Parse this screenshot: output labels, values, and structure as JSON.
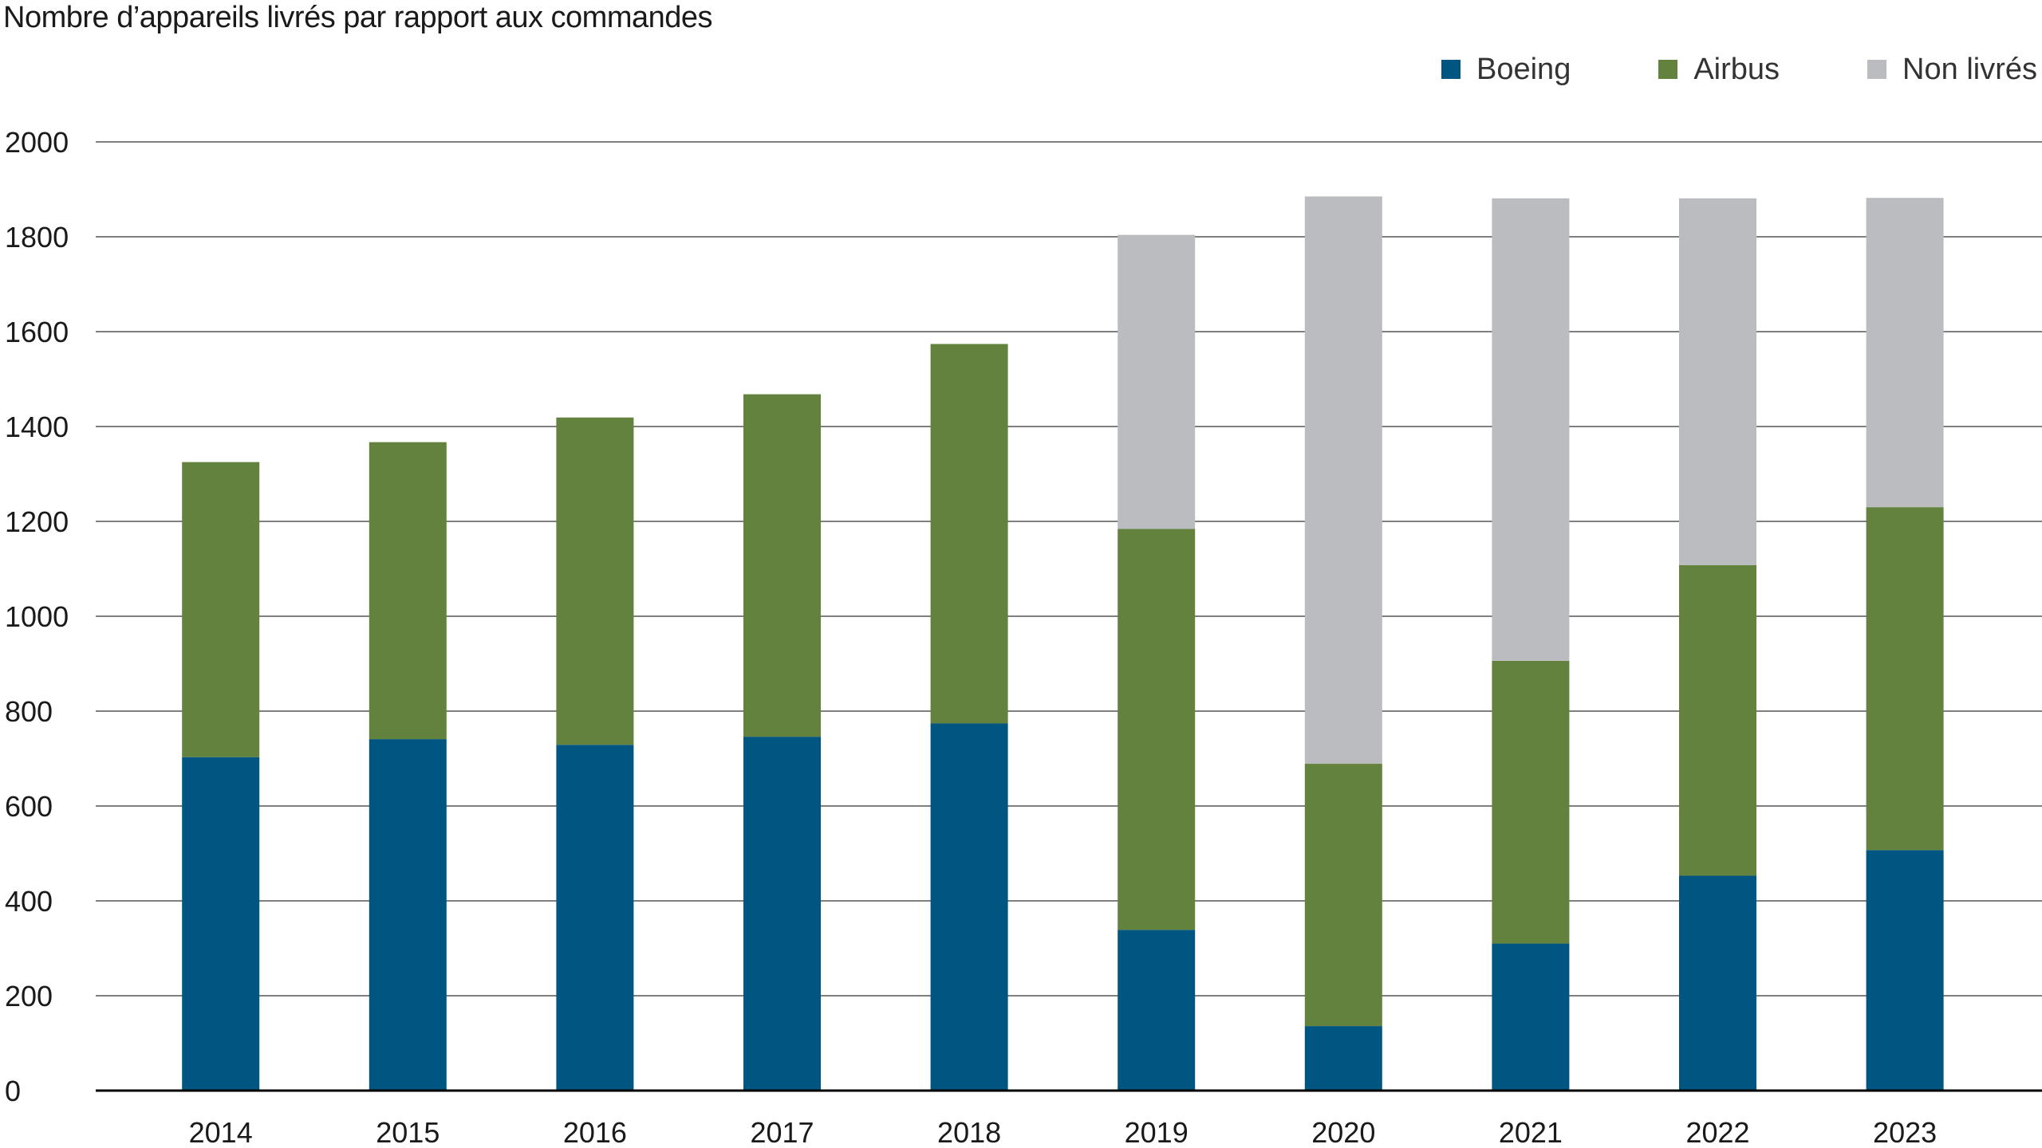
{
  "chart_data": {
    "type": "bar",
    "stacked": true,
    "title": "Nombre d’appareils livrés par rapport aux commandes",
    "xlabel": "",
    "ylabel": "",
    "categories": [
      "2014",
      "2015",
      "2016",
      "2017",
      "2018",
      "2019",
      "2020",
      "2021",
      "2022",
      "2023"
    ],
    "series": [
      {
        "name": "Boeing",
        "color": "#005680",
        "values": [
          703,
          741,
          729,
          746,
          774,
          339,
          136,
          310,
          453,
          507
        ]
      },
      {
        "name": "Airbus",
        "color": "#62823d",
        "values": [
          622,
          626,
          690,
          722,
          800,
          845,
          553,
          596,
          655,
          723
        ]
      },
      {
        "name": "Non livrés",
        "color": "#bbbcbf",
        "values": [
          0,
          0,
          0,
          0,
          0,
          620,
          1196,
          975,
          773,
          652
        ]
      }
    ],
    "ylim": [
      0,
      2000
    ],
    "yticks": [
      "0",
      "200",
      "400",
      "600",
      "800",
      "1000",
      "1200",
      "1400",
      "1600",
      "1800",
      "2000"
    ],
    "grid": true,
    "legend_position": "top-right"
  }
}
